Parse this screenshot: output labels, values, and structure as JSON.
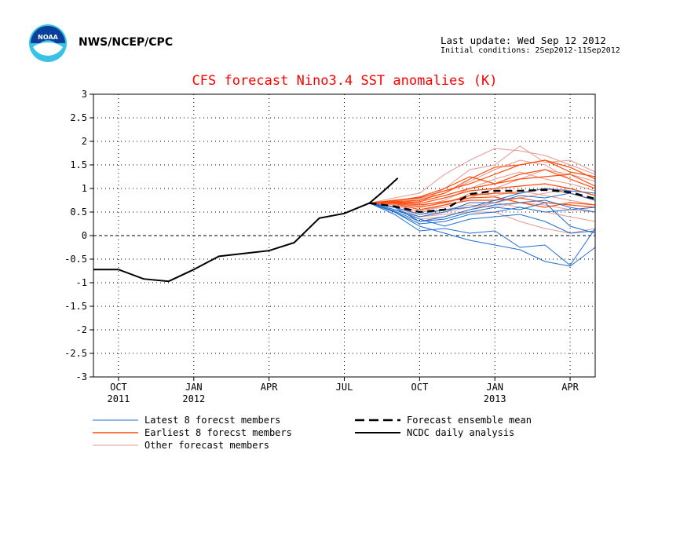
{
  "header": {
    "agency": "NWS/NCEP/CPC",
    "last_update": "Last update: Wed Sep 12 2012",
    "initial_conditions": "Initial conditions: 2Sep2012-11Sep2012",
    "logo_text": "NOAA"
  },
  "colors": {
    "latest": "#1f6fd0",
    "earliest": "#ff4c0c",
    "other": "#e59a90",
    "mean": "#000000",
    "analysis": "#000000",
    "title": "#ff0000"
  },
  "chart_data": {
    "type": "line",
    "title": "CFS forecast Nino3.4 SST anomalies (K)",
    "xlabel": "",
    "ylabel": "",
    "ylim": [
      -3,
      3
    ],
    "yticks": [
      3,
      2.5,
      2,
      1.5,
      1,
      0.5,
      0,
      -0.5,
      -1,
      -1.5,
      -2,
      -2.5,
      -3
    ],
    "ytick_labels": [
      "3",
      "2.5",
      "2",
      "1.5",
      "1",
      "0.5",
      "0",
      "-0.5",
      "-1",
      "-1.5",
      "-2",
      "-2.5",
      "-3"
    ],
    "x_start": "2011-09",
    "x_end": "2013-05",
    "xticks": [
      {
        "month": "2011-10",
        "label": "OCT",
        "year": "2011"
      },
      {
        "month": "2012-01",
        "label": "JAN",
        "year": "2012"
      },
      {
        "month": "2012-04",
        "label": "APR",
        "year": ""
      },
      {
        "month": "2012-07",
        "label": "JUL",
        "year": ""
      },
      {
        "month": "2012-10",
        "label": "OCT",
        "year": ""
      },
      {
        "month": "2013-01",
        "label": "JAN",
        "year": "2013"
      },
      {
        "month": "2013-04",
        "label": "APR",
        "year": ""
      }
    ],
    "grid": true,
    "zero_line": true,
    "legend": [
      {
        "label": "Latest 8 forecst members",
        "style": "latest"
      },
      {
        "label": "Earliest 8 forecst members",
        "style": "earliest"
      },
      {
        "label": "Other forecast members",
        "style": "other"
      },
      {
        "label": "Forecast ensemble mean",
        "style": "mean"
      },
      {
        "label": "NCDC daily analysis",
        "style": "analysis"
      }
    ],
    "analysis": {
      "x": [
        "2011-09",
        "2011-10",
        "2011-11",
        "2011-12",
        "2012-01",
        "2012-02",
        "2012-03",
        "2012-04",
        "2012-05",
        "2012-06",
        "2012-07",
        "2012-08",
        "2012-08-15",
        "2012-09-05"
      ],
      "y": [
        -0.72,
        -0.72,
        -0.92,
        -0.97,
        -0.72,
        -0.44,
        -0.38,
        -0.32,
        -0.15,
        0.37,
        0.47,
        0.69,
        0.9,
        1.22
      ]
    },
    "forecast_x": [
      "2012-08",
      "2012-09",
      "2012-10",
      "2012-11",
      "2012-12",
      "2013-01",
      "2013-02",
      "2013-03",
      "2013-04",
      "2013-05"
    ],
    "ensemble_mean": [
      0.69,
      0.62,
      0.5,
      0.55,
      0.88,
      0.95,
      0.95,
      0.97,
      0.92,
      0.78
    ],
    "latest_members": [
      [
        0.69,
        0.5,
        0.2,
        0.05,
        -0.1,
        -0.2,
        -0.3,
        -0.55,
        -0.65,
        -0.25
      ],
      [
        0.69,
        0.45,
        0.1,
        0.15,
        0.05,
        0.1,
        -0.25,
        -0.2,
        -0.63,
        0.15
      ],
      [
        0.69,
        0.55,
        0.35,
        0.2,
        0.35,
        0.4,
        0.45,
        0.3,
        0.05,
        0.1
      ],
      [
        0.69,
        0.5,
        0.25,
        0.3,
        0.45,
        0.5,
        0.6,
        0.5,
        0.55,
        0.6
      ],
      [
        0.69,
        0.6,
        0.3,
        0.4,
        0.55,
        0.65,
        0.7,
        0.75,
        0.6,
        0.5
      ],
      [
        0.69,
        0.55,
        0.4,
        0.5,
        0.7,
        0.7,
        0.85,
        0.8,
        0.9,
        0.75
      ],
      [
        0.69,
        0.6,
        0.45,
        0.55,
        0.6,
        0.75,
        0.9,
        1.0,
        0.95,
        0.9
      ],
      [
        0.69,
        0.52,
        0.3,
        0.35,
        0.5,
        0.6,
        0.55,
        0.7,
        0.2,
        0.05
      ]
    ],
    "earliest_members": [
      [
        0.69,
        0.75,
        0.8,
        0.95,
        1.1,
        1.3,
        1.5,
        1.6,
        1.45,
        1.2
      ],
      [
        0.69,
        0.7,
        0.72,
        0.85,
        1.0,
        1.1,
        1.2,
        1.25,
        1.3,
        1.05
      ],
      [
        0.69,
        0.72,
        0.68,
        0.8,
        0.95,
        1.0,
        1.05,
        1.1,
        1.0,
        0.85
      ],
      [
        0.69,
        0.7,
        0.6,
        0.7,
        0.85,
        0.9,
        0.9,
        1.0,
        0.9,
        0.75
      ],
      [
        0.69,
        0.72,
        0.75,
        0.9,
        1.2,
        1.45,
        1.5,
        1.6,
        1.35,
        1.25
      ],
      [
        0.69,
        0.68,
        0.55,
        0.65,
        0.75,
        0.75,
        0.8,
        0.7,
        0.65,
        0.6
      ],
      [
        0.69,
        0.74,
        0.82,
        1.0,
        1.25,
        1.1,
        1.3,
        1.4,
        1.2,
        1.0
      ],
      [
        0.69,
        0.7,
        0.65,
        0.72,
        0.8,
        0.82,
        0.7,
        0.6,
        0.7,
        0.65
      ]
    ],
    "other_members": [
      [
        0.69,
        0.8,
        0.9,
        1.3,
        1.6,
        1.85,
        1.8,
        1.7,
        1.5,
        1.3
      ],
      [
        0.69,
        0.75,
        0.7,
        1.0,
        1.4,
        1.5,
        1.9,
        1.55,
        1.6,
        1.35
      ],
      [
        0.69,
        0.7,
        0.55,
        0.6,
        0.8,
        1.0,
        1.2,
        1.4,
        1.3,
        1.15
      ],
      [
        0.69,
        0.65,
        0.45,
        0.5,
        0.6,
        0.7,
        0.8,
        0.9,
        1.0,
        0.85
      ],
      [
        0.69,
        0.6,
        0.35,
        0.4,
        0.55,
        0.7,
        0.6,
        0.5,
        0.4,
        0.3
      ],
      [
        0.69,
        0.62,
        0.4,
        0.45,
        0.5,
        0.5,
        0.3,
        0.15,
        0.05,
        0.15
      ],
      [
        0.69,
        0.72,
        0.62,
        0.75,
        1.0,
        1.2,
        1.35,
        1.2,
        1.1,
        0.95
      ],
      [
        0.69,
        0.68,
        0.5,
        0.65,
        0.9,
        0.85,
        0.95,
        0.85,
        0.75,
        0.65
      ],
      [
        0.69,
        0.74,
        0.78,
        0.9,
        1.15,
        1.4,
        1.6,
        1.5,
        1.2,
        1.0
      ],
      [
        0.69,
        0.66,
        0.5,
        0.55,
        0.65,
        0.6,
        0.7,
        0.65,
        0.55,
        0.5
      ]
    ]
  }
}
